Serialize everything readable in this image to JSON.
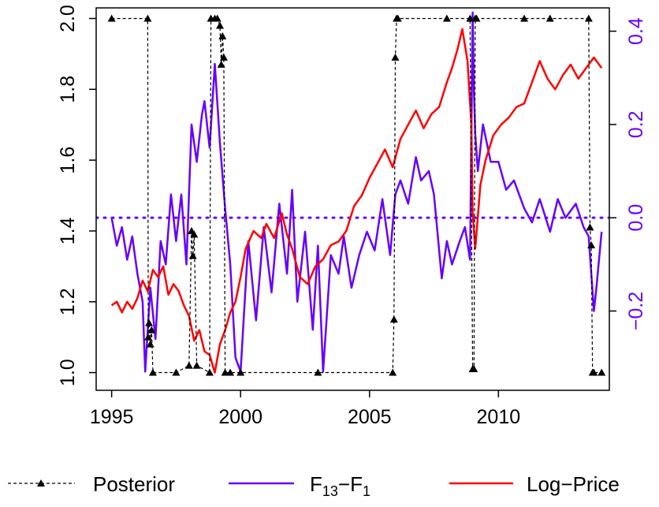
{
  "chart_data": {
    "type": "line",
    "title": "",
    "xlabel": "",
    "ylabel": "",
    "y2label": "",
    "xlim": [
      1994.4,
      2014.3
    ],
    "ylim": [
      0.95,
      2.03
    ],
    "y2lim": [
      -0.37,
      0.45
    ],
    "x_ticks": [
      1995,
      2000,
      2005,
      2010
    ],
    "y_ticks": [
      1.0,
      1.2,
      1.4,
      1.6,
      1.8,
      2.0
    ],
    "y2_ticks": [
      -0.2,
      0.0,
      0.2,
      0.4
    ],
    "y2_tick_labels": [
      "−0.2",
      "0.0",
      "0.2",
      "0.4"
    ],
    "reference_line_y2": 0.0,
    "colors": {
      "posterior": "#000000",
      "spread": "#6600ff",
      "price": "#ff0000",
      "axis2": "#6600ff"
    },
    "legend": {
      "placement": "bottom",
      "items": [
        {
          "label": "Posterior",
          "color": "#000000",
          "style": "dashed-triangle"
        },
        {
          "label_main": "F",
          "label_sub1": "13",
          "label_mid": "−F",
          "label_sub2": "1",
          "color": "#6600ff",
          "style": "solid"
        },
        {
          "label": "Log−Price",
          "color": "#ff0000",
          "style": "solid"
        }
      ]
    },
    "series": [
      {
        "name": "Posterior",
        "axis": "left",
        "x": [
          1995.0,
          1996.4,
          1996.42,
          1996.45,
          1996.5,
          1996.55,
          1996.6,
          1997.5,
          1998.0,
          1998.1,
          1998.15,
          1998.2,
          1998.3,
          1998.8,
          1998.85,
          1999.0,
          1999.1,
          1999.2,
          1999.25,
          1999.3,
          1999.35,
          1999.4,
          1999.6,
          2000.0,
          2003.0,
          2005.9,
          2005.95,
          2006.0,
          2006.05,
          2006.1,
          2008.0,
          2008.9,
          2009.0,
          2009.05,
          2009.1,
          2009.15,
          2011.0,
          2012.0,
          2013.5,
          2013.55,
          2013.6,
          2013.65,
          2013.7,
          2014.0
        ],
        "values": [
          2.0,
          2.0,
          1.1,
          1.14,
          1.08,
          1.12,
          1.0,
          1.0,
          1.02,
          1.4,
          1.33,
          1.39,
          1.02,
          1.0,
          2.0,
          2.0,
          2.0,
          1.98,
          1.87,
          1.95,
          1.89,
          1.0,
          1.0,
          1.0,
          1.0,
          1.0,
          1.15,
          1.89,
          2.0,
          2.0,
          2.0,
          2.0,
          1.01,
          1.01,
          2.0,
          2.0,
          2.0,
          2.0,
          2.0,
          1.41,
          1.36,
          1.0,
          1.0,
          1.0
        ]
      },
      {
        "name": "F13−F1",
        "axis": "right",
        "x": [
          1995.0,
          1995.2,
          1995.4,
          1995.6,
          1995.8,
          1996.0,
          1996.2,
          1996.3,
          1996.5,
          1996.7,
          1996.9,
          1997.1,
          1997.3,
          1997.5,
          1997.7,
          1997.9,
          1998.1,
          1998.3,
          1998.5,
          1998.6,
          1998.8,
          1999.0,
          1999.2,
          1999.4,
          1999.6,
          1999.8,
          2000.0,
          2000.3,
          2000.6,
          2000.9,
          2001.2,
          2001.5,
          2001.8,
          2002.0,
          2002.2,
          2002.5,
          2002.8,
          2003.0,
          2003.2,
          2003.5,
          2003.8,
          2004.0,
          2004.3,
          2004.6,
          2004.9,
          2005.2,
          2005.5,
          2005.8,
          2006.0,
          2006.2,
          2006.5,
          2006.8,
          2007.0,
          2007.3,
          2007.5,
          2007.8,
          2008.0,
          2008.2,
          2008.5,
          2008.7,
          2008.9,
          2009.0,
          2009.05,
          2009.1,
          2009.2,
          2009.4,
          2009.7,
          2010.0,
          2010.3,
          2010.6,
          2011.0,
          2011.3,
          2011.6,
          2012.0,
          2012.3,
          2012.6,
          2013.0,
          2013.3,
          2013.5,
          2013.7,
          2013.8,
          2014.0
        ],
        "values": [
          0.0,
          -0.06,
          -0.02,
          -0.09,
          -0.04,
          -0.12,
          -0.18,
          -0.33,
          -0.15,
          -0.26,
          -0.05,
          -0.1,
          0.05,
          -0.05,
          0.05,
          -0.1,
          0.2,
          0.12,
          0.22,
          0.25,
          0.15,
          0.33,
          0.16,
          0.02,
          -0.1,
          -0.3,
          -0.33,
          -0.05,
          -0.22,
          -0.02,
          -0.16,
          0.03,
          -0.12,
          0.06,
          -0.18,
          -0.03,
          -0.24,
          -0.06,
          -0.33,
          -0.08,
          -0.12,
          -0.04,
          -0.15,
          -0.08,
          -0.03,
          -0.07,
          0.04,
          -0.08,
          0.05,
          0.08,
          0.03,
          0.13,
          0.08,
          0.1,
          0.05,
          -0.13,
          -0.05,
          -0.1,
          -0.05,
          -0.02,
          -0.09,
          0.44,
          0.27,
          0.18,
          0.1,
          0.2,
          0.12,
          0.12,
          0.06,
          0.08,
          0.02,
          -0.01,
          0.04,
          -0.03,
          0.04,
          0.0,
          0.03,
          -0.02,
          -0.04,
          -0.2,
          -0.15,
          -0.03
        ]
      },
      {
        "name": "Log−Price",
        "axis": "left",
        "x": [
          1995.0,
          1995.2,
          1995.4,
          1995.6,
          1995.8,
          1996.0,
          1996.2,
          1996.4,
          1996.6,
          1996.8,
          1997.0,
          1997.2,
          1997.4,
          1997.6,
          1997.8,
          1998.0,
          1998.2,
          1998.4,
          1998.6,
          1998.8,
          1999.0,
          1999.2,
          1999.4,
          1999.6,
          1999.8,
          2000.0,
          2000.2,
          2000.5,
          2000.8,
          2001.0,
          2001.3,
          2001.6,
          2001.8,
          2002.0,
          2002.3,
          2002.6,
          2002.9,
          2003.2,
          2003.5,
          2003.8,
          2004.1,
          2004.4,
          2004.7,
          2005.0,
          2005.3,
          2005.6,
          2005.9,
          2006.2,
          2006.5,
          2006.8,
          2007.1,
          2007.4,
          2007.7,
          2008.0,
          2008.2,
          2008.4,
          2008.6,
          2008.8,
          2008.95,
          2009.0,
          2009.1,
          2009.3,
          2009.5,
          2009.8,
          2010.1,
          2010.4,
          2010.7,
          2011.0,
          2011.3,
          2011.6,
          2011.9,
          2012.2,
          2012.5,
          2012.8,
          2013.1,
          2013.4,
          2013.7,
          2014.0
        ],
        "values": [
          1.19,
          1.2,
          1.17,
          1.2,
          1.18,
          1.21,
          1.26,
          1.23,
          1.29,
          1.27,
          1.3,
          1.22,
          1.25,
          1.23,
          1.19,
          1.16,
          1.09,
          1.12,
          1.06,
          1.05,
          1.0,
          1.08,
          1.12,
          1.17,
          1.2,
          1.27,
          1.35,
          1.4,
          1.38,
          1.42,
          1.38,
          1.45,
          1.39,
          1.35,
          1.27,
          1.25,
          1.3,
          1.32,
          1.36,
          1.37,
          1.4,
          1.47,
          1.5,
          1.55,
          1.59,
          1.63,
          1.58,
          1.66,
          1.7,
          1.74,
          1.69,
          1.73,
          1.75,
          1.82,
          1.86,
          1.91,
          1.97,
          1.88,
          1.7,
          1.45,
          1.35,
          1.53,
          1.6,
          1.67,
          1.7,
          1.72,
          1.75,
          1.76,
          1.82,
          1.88,
          1.83,
          1.8,
          1.84,
          1.87,
          1.83,
          1.86,
          1.89,
          1.86
        ]
      }
    ]
  }
}
